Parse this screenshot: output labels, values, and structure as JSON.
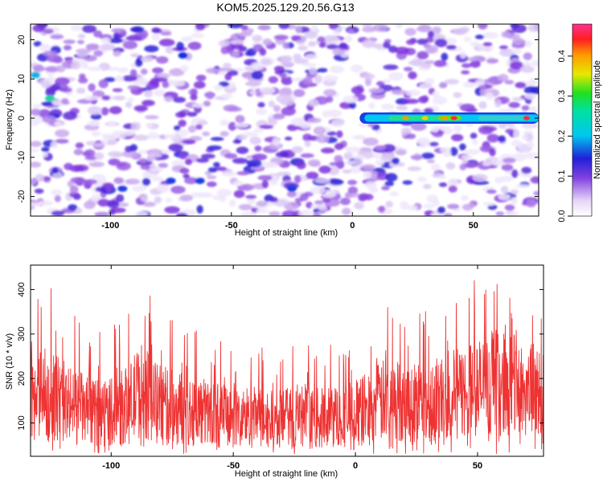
{
  "title": "KOM5.2025.129.20.56.G13",
  "chart_data": [
    {
      "type": "heatmap",
      "xlabel": "Height of straight line (km)",
      "ylabel": "Frequency (Hz)",
      "xlim": [
        -133,
        77
      ],
      "ylim": [
        -25,
        24
      ],
      "xticks": [
        -100,
        -50,
        0,
        50
      ],
      "xtick_labels": [
        "-100",
        "-50",
        "0",
        "50"
      ],
      "yticks": [
        -20,
        -10,
        0,
        10,
        20
      ],
      "ytick_labels": [
        "-20",
        "-10",
        "0",
        "10",
        "20"
      ],
      "colorbar": {
        "label": "Normalized spectral amplitude",
        "range": [
          0,
          0.48
        ],
        "ticks": [
          0.0,
          0.1,
          0.2,
          0.3,
          0.4
        ],
        "tick_labels": [
          "0.0",
          "0.1",
          "0.2",
          "0.3",
          "0.4"
        ]
      },
      "features": [
        {
          "description": "signal band",
          "x_range": [
            3,
            77
          ],
          "frequency": 0,
          "amplitude_max": 0.45
        }
      ],
      "grid": false
    },
    {
      "type": "line",
      "xlabel": "Height of straight line (km)",
      "ylabel": "SNR (10 * v/v)",
      "xlim": [
        -133,
        77
      ],
      "ylim": [
        25,
        455
      ],
      "xticks": [
        -100,
        -50,
        0,
        50
      ],
      "xtick_labels": [
        "-100",
        "-50",
        "0",
        "50"
      ],
      "yticks": [
        100,
        200,
        300,
        400
      ],
      "ytick_labels": [
        "100",
        "200",
        "300",
        "400"
      ],
      "color": "#ee3333",
      "series": [
        {
          "x": [
            -133,
            -128,
            -123,
            -118,
            -113,
            -108,
            -103,
            -98,
            -93,
            -88,
            -83,
            -78,
            -73,
            -68,
            -63,
            -58,
            -53,
            -48,
            -43,
            -38,
            -33,
            -28,
            -23,
            -18,
            -13,
            -8,
            -3,
            2,
            7,
            12,
            17,
            22,
            27,
            32,
            37,
            42,
            47,
            52,
            57,
            62,
            67,
            72,
            77
          ],
          "values": [
            150,
            165,
            160,
            140,
            135,
            120,
            125,
            130,
            140,
            175,
            150,
            140,
            135,
            130,
            125,
            120,
            115,
            110,
            115,
            110,
            105,
            110,
            115,
            110,
            110,
            115,
            120,
            125,
            140,
            150,
            150,
            145,
            155,
            150,
            160,
            165,
            175,
            180,
            185,
            190,
            180,
            175,
            165
          ]
        }
      ],
      "grid": false
    }
  ]
}
